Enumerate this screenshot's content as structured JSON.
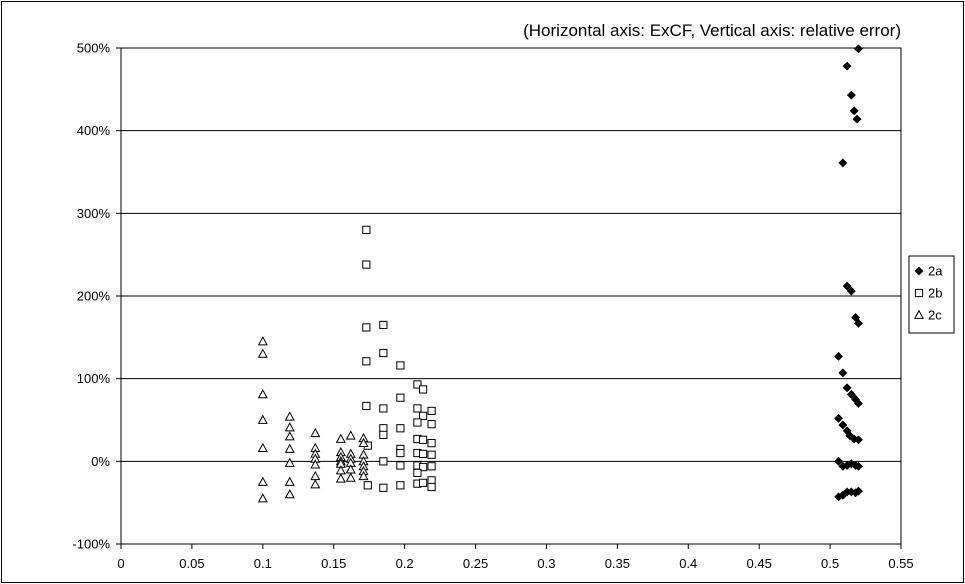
{
  "chart_data": {
    "type": "scatter",
    "title": "(Horizontal axis: ExCF, Vertical axis: relative error)",
    "xlim": [
      0,
      0.55
    ],
    "ylim": [
      -100,
      500
    ],
    "x_ticks": [
      0,
      0.05,
      0.1,
      0.15,
      0.2,
      0.25,
      0.3,
      0.35,
      0.4,
      0.45,
      0.5,
      0.55
    ],
    "x_tick_labels": [
      "0",
      "0.05",
      "0.1",
      "0.15",
      "0.2",
      "0.25",
      "0.3",
      "0.35",
      "0.4",
      "0.45",
      "0.5",
      "0.55"
    ],
    "y_ticks": [
      -100,
      0,
      100,
      200,
      300,
      400,
      500
    ],
    "y_tick_labels": [
      "-100%",
      "0%",
      "100%",
      "200%",
      "300%",
      "400%",
      "500%"
    ],
    "grid": "horizontal",
    "legend_position": "right",
    "series": [
      {
        "name": "2a",
        "marker": "filled-diamond",
        "color": "#000000",
        "points": [
          [
            0.52,
            499
          ],
          [
            0.512,
            478
          ],
          [
            0.515,
            443
          ],
          [
            0.517,
            424
          ],
          [
            0.519,
            414
          ],
          [
            0.509,
            361
          ],
          [
            0.512,
            212
          ],
          [
            0.515,
            206
          ],
          [
            0.518,
            174
          ],
          [
            0.52,
            167
          ],
          [
            0.506,
            127
          ],
          [
            0.509,
            107
          ],
          [
            0.512,
            89
          ],
          [
            0.515,
            81
          ],
          [
            0.518,
            75
          ],
          [
            0.52,
            70
          ],
          [
            0.506,
            52
          ],
          [
            0.509,
            44
          ],
          [
            0.512,
            37
          ],
          [
            0.514,
            31
          ],
          [
            0.517,
            27
          ],
          [
            0.52,
            26
          ],
          [
            0.506,
            0
          ],
          [
            0.509,
            -6
          ],
          [
            0.512,
            -5
          ],
          [
            0.515,
            -3
          ],
          [
            0.518,
            -5
          ],
          [
            0.52,
            -6
          ],
          [
            0.506,
            -43
          ],
          [
            0.509,
            -41
          ],
          [
            0.512,
            -37
          ],
          [
            0.515,
            -37
          ],
          [
            0.518,
            -38
          ],
          [
            0.52,
            -36
          ]
        ]
      },
      {
        "name": "2b",
        "marker": "hollow-square",
        "color": "#000000",
        "points": [
          [
            0.173,
            280
          ],
          [
            0.173,
            238
          ],
          [
            0.173,
            162
          ],
          [
            0.185,
            165
          ],
          [
            0.173,
            121
          ],
          [
            0.185,
            131
          ],
          [
            0.197,
            116
          ],
          [
            0.209,
            93
          ],
          [
            0.213,
            87
          ],
          [
            0.173,
            67
          ],
          [
            0.185,
            64
          ],
          [
            0.197,
            77
          ],
          [
            0.209,
            64
          ],
          [
            0.213,
            55
          ],
          [
            0.219,
            61
          ],
          [
            0.219,
            45
          ],
          [
            0.185,
            40
          ],
          [
            0.197,
            40
          ],
          [
            0.209,
            47
          ],
          [
            0.174,
            19
          ],
          [
            0.185,
            32
          ],
          [
            0.197,
            15
          ],
          [
            0.209,
            27
          ],
          [
            0.213,
            26
          ],
          [
            0.219,
            22
          ],
          [
            0.197,
            10
          ],
          [
            0.209,
            10
          ],
          [
            0.213,
            9
          ],
          [
            0.219,
            8
          ],
          [
            0.185,
            0
          ],
          [
            0.197,
            -5
          ],
          [
            0.209,
            -5
          ],
          [
            0.213,
            -7
          ],
          [
            0.219,
            -6
          ],
          [
            0.209,
            -14
          ],
          [
            0.174,
            -29
          ],
          [
            0.185,
            -32
          ],
          [
            0.197,
            -29
          ],
          [
            0.209,
            -27
          ],
          [
            0.213,
            -26
          ],
          [
            0.219,
            -23
          ],
          [
            0.219,
            -31
          ]
        ]
      },
      {
        "name": "2c",
        "marker": "hollow-triangle",
        "color": "#000000",
        "points": [
          [
            0.1,
            145
          ],
          [
            0.1,
            130
          ],
          [
            0.1,
            81
          ],
          [
            0.1,
            50
          ],
          [
            0.1,
            16
          ],
          [
            0.1,
            -25
          ],
          [
            0.1,
            -45
          ],
          [
            0.119,
            54
          ],
          [
            0.119,
            41
          ],
          [
            0.119,
            30
          ],
          [
            0.119,
            15
          ],
          [
            0.119,
            -2
          ],
          [
            0.119,
            -25
          ],
          [
            0.119,
            -40
          ],
          [
            0.137,
            34
          ],
          [
            0.137,
            16
          ],
          [
            0.137,
            9
          ],
          [
            0.137,
            3
          ],
          [
            0.137,
            -4
          ],
          [
            0.137,
            -18
          ],
          [
            0.137,
            -28
          ],
          [
            0.155,
            27
          ],
          [
            0.155,
            11
          ],
          [
            0.155,
            5
          ],
          [
            0.155,
            0
          ],
          [
            0.155,
            -3
          ],
          [
            0.155,
            -11
          ],
          [
            0.155,
            -21
          ],
          [
            0.162,
            31
          ],
          [
            0.162,
            9
          ],
          [
            0.162,
            3
          ],
          [
            0.162,
            -2
          ],
          [
            0.162,
            -10
          ],
          [
            0.162,
            -20
          ],
          [
            0.171,
            28
          ],
          [
            0.171,
            22
          ],
          [
            0.171,
            8
          ],
          [
            0.171,
            0
          ],
          [
            0.171,
            -6
          ],
          [
            0.171,
            -12
          ],
          [
            0.171,
            -18
          ]
        ]
      }
    ]
  }
}
